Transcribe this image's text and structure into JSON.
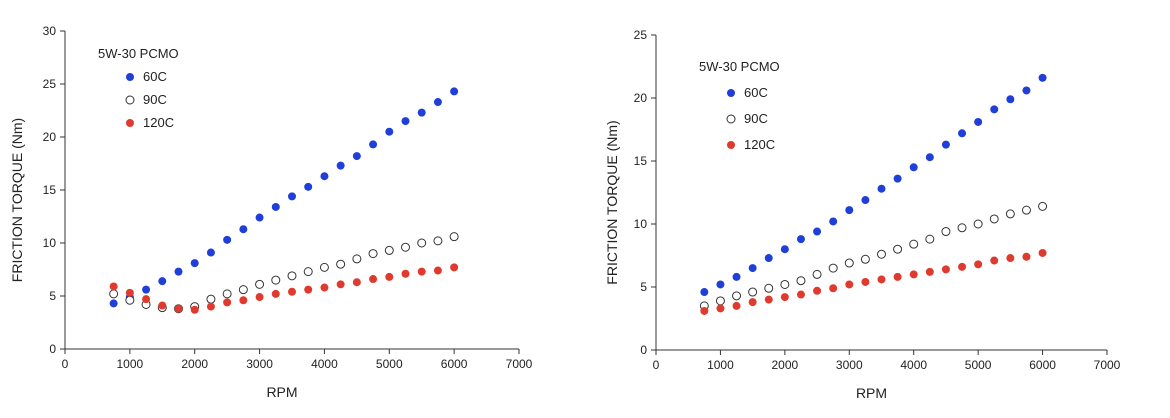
{
  "chart_data": [
    {
      "type": "scatter",
      "title": "",
      "xlabel": "RPM",
      "ylabel": "FRICTION TORQUE (Nm)",
      "xlim": [
        0,
        7000
      ],
      "ylim": [
        0,
        30
      ],
      "xticks": [
        0,
        1000,
        2000,
        3000,
        4000,
        5000,
        6000,
        7000
      ],
      "yticks": [
        0,
        5,
        10,
        15,
        20,
        25,
        30
      ],
      "grid": false,
      "legend_title": "5W-30 PCMO",
      "legend_position": "top-left",
      "series": [
        {
          "name": "60C",
          "marker": "filled",
          "color": "#1f3fd8",
          "x": [
            750,
            1000,
            1250,
            1500,
            1750,
            2000,
            2250,
            2500,
            2750,
            3000,
            3250,
            3500,
            3750,
            4000,
            4250,
            4500,
            4750,
            5000,
            5250,
            5500,
            5750,
            6000
          ],
          "y": [
            4.3,
            4.9,
            5.6,
            6.4,
            7.3,
            8.1,
            9.1,
            10.3,
            11.3,
            12.4,
            13.4,
            14.4,
            15.3,
            16.3,
            17.3,
            18.2,
            19.3,
            20.5,
            21.5,
            22.3,
            23.3,
            24.3
          ]
        },
        {
          "name": "90C",
          "marker": "open",
          "color": "#333333",
          "x": [
            750,
            1000,
            1250,
            1500,
            1750,
            2000,
            2250,
            2500,
            2750,
            3000,
            3250,
            3500,
            3750,
            4000,
            4250,
            4500,
            4750,
            5000,
            5250,
            5500,
            5750,
            6000
          ],
          "y": [
            5.2,
            4.6,
            4.2,
            3.9,
            3.8,
            4.0,
            4.7,
            5.2,
            5.6,
            6.1,
            6.5,
            6.9,
            7.3,
            7.7,
            8.0,
            8.5,
            9.0,
            9.3,
            9.6,
            10.0,
            10.2,
            10.6
          ]
        },
        {
          "name": "120C",
          "marker": "filled",
          "color": "#e03a2f",
          "x": [
            750,
            1000,
            1250,
            1500,
            1750,
            2000,
            2250,
            2500,
            2750,
            3000,
            3250,
            3500,
            3750,
            4000,
            4250,
            4500,
            4750,
            5000,
            5250,
            5500,
            5750,
            6000
          ],
          "y": [
            5.9,
            5.3,
            4.7,
            4.1,
            3.8,
            3.7,
            4.0,
            4.4,
            4.6,
            4.9,
            5.2,
            5.4,
            5.6,
            5.8,
            6.1,
            6.3,
            6.6,
            6.8,
            7.1,
            7.3,
            7.4,
            7.7
          ]
        }
      ]
    },
    {
      "type": "scatter",
      "title": "",
      "xlabel": "RPM",
      "ylabel": "FRICTION TORQUE (Nm)",
      "xlim": [
        0,
        7000
      ],
      "ylim": [
        0,
        25
      ],
      "xticks": [
        0,
        1000,
        2000,
        3000,
        4000,
        5000,
        6000,
        7000
      ],
      "yticks": [
        0,
        5,
        10,
        15,
        20,
        25
      ],
      "grid": false,
      "legend_title": "5W-30 PCMO",
      "legend_position": "top-left",
      "series": [
        {
          "name": "60C",
          "marker": "filled",
          "color": "#1f3fd8",
          "x": [
            750,
            1000,
            1250,
            1500,
            1750,
            2000,
            2250,
            2500,
            2750,
            3000,
            3250,
            3500,
            3750,
            4000,
            4250,
            4500,
            4750,
            5000,
            5250,
            5500,
            5750,
            6000
          ],
          "y": [
            4.6,
            5.2,
            5.8,
            6.5,
            7.3,
            8.0,
            8.8,
            9.4,
            10.2,
            11.1,
            11.9,
            12.8,
            13.6,
            14.5,
            15.3,
            16.3,
            17.2,
            18.1,
            19.1,
            19.9,
            20.6,
            21.6
          ]
        },
        {
          "name": "90C",
          "marker": "open",
          "color": "#333333",
          "x": [
            750,
            1000,
            1250,
            1500,
            1750,
            2000,
            2250,
            2500,
            2750,
            3000,
            3250,
            3500,
            3750,
            4000,
            4250,
            4500,
            4750,
            5000,
            5250,
            5500,
            5750,
            6000
          ],
          "y": [
            3.5,
            3.9,
            4.3,
            4.6,
            4.9,
            5.2,
            5.5,
            6.0,
            6.5,
            6.9,
            7.2,
            7.6,
            8.0,
            8.4,
            8.8,
            9.4,
            9.7,
            10.0,
            10.4,
            10.8,
            11.1,
            11.4
          ]
        },
        {
          "name": "120C",
          "marker": "filled",
          "color": "#e03a2f",
          "x": [
            750,
            1000,
            1250,
            1500,
            1750,
            2000,
            2250,
            2500,
            2750,
            3000,
            3250,
            3500,
            3750,
            4000,
            4250,
            4500,
            4750,
            5000,
            5250,
            5500,
            5750,
            6000
          ],
          "y": [
            3.1,
            3.3,
            3.5,
            3.8,
            4.0,
            4.2,
            4.4,
            4.7,
            4.9,
            5.2,
            5.4,
            5.6,
            5.8,
            6.0,
            6.2,
            6.4,
            6.6,
            6.8,
            7.1,
            7.3,
            7.4,
            7.7
          ]
        }
      ]
    }
  ]
}
